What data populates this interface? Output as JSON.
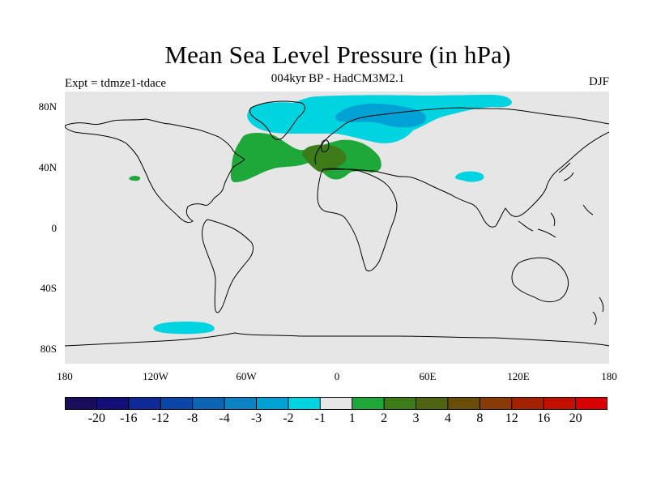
{
  "title": "Mean Sea Level Pressure (in hPa)",
  "subtitle": "004kyr BP - HadCM3M2.1",
  "experiment": "Expt = tdmze1-tdace",
  "season": "DJF",
  "map": {
    "projection": "equirectangular",
    "lon_range": [
      -180,
      180
    ],
    "lat_range": [
      -90,
      90
    ],
    "ocean_color": "#e6e6e6",
    "anomalies": [
      {
        "region": "Arctic / North Atlantic / Scandinavia",
        "level": "-2 to -1",
        "color": "#00d4e0"
      },
      {
        "region": "Barents / Kara Sea core",
        "level": "-3 to -2",
        "color": "#00a2d6"
      },
      {
        "region": "Central Asia (Tarim)",
        "level": "-2 to -1",
        "color": "#00d4e0"
      },
      {
        "region": "Southern Ocean (Amundsen / Bellingshausen)",
        "level": "-2 to -1",
        "color": "#00d4e0"
      },
      {
        "region": "North Atlantic / Europe / Mediterranean",
        "level": "1 to 2",
        "color": "#1ea83a"
      },
      {
        "region": "Eastern North Pacific (small patch)",
        "level": "1 to 2",
        "color": "#1ea83a"
      },
      {
        "region": "Western Europe / Bay of Biscay core",
        "level": "2 to 3",
        "color": "#3d7a18"
      }
    ]
  },
  "axes": {
    "y_ticks": [
      "80N",
      "40N",
      "0",
      "40S",
      "80S"
    ],
    "x_ticks": [
      "180",
      "120W",
      "60W",
      "0",
      "60E",
      "120E",
      "180"
    ]
  },
  "colorbar": {
    "colors": [
      "#1a0d5c",
      "#140e78",
      "#0f2a96",
      "#0a46a8",
      "#0c64b4",
      "#0a82c4",
      "#00a2d6",
      "#00d4e0",
      "#e6e6e6",
      "#1ea83a",
      "#3d7a18",
      "#4e6410",
      "#6a4e08",
      "#8a3a04",
      "#a42200",
      "#c20f00",
      "#d80000"
    ],
    "labels": [
      "-20",
      "-16",
      "-12",
      "-8",
      "-4",
      "-3",
      "-2",
      "-1",
      "1",
      "2",
      "3",
      "4",
      "8",
      "12",
      "16",
      "20"
    ]
  }
}
